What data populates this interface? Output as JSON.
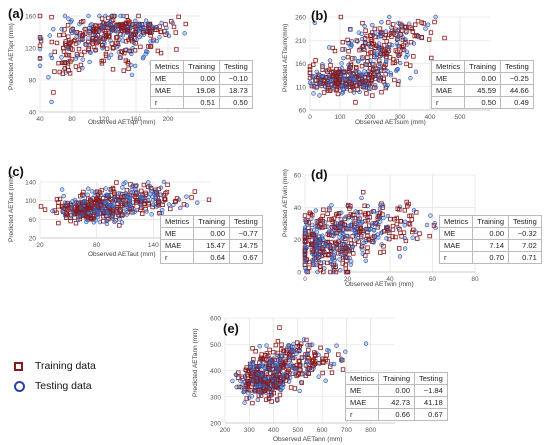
{
  "colors": {
    "training": "#8b1a1a",
    "testing": "#2b4fb0",
    "testing_fill": "#4a86c8",
    "training_fill": "#c96060",
    "grid": "#dddddd",
    "axis": "#cccccc"
  },
  "legend": {
    "training_label": "Training data",
    "testing_label": "Testing data"
  },
  "chart_data": [
    {
      "type": "scatter",
      "panel": "(a)",
      "xlabel": "Observed  AETspr (mm)",
      "ylabel": "Predicted AETspr (mm)",
      "xlim": [
        40,
        240
      ],
      "ylim": [
        40,
        160
      ],
      "xticks": [
        40,
        80,
        120,
        160,
        200
      ],
      "yticks": [
        40,
        80,
        120,
        160
      ],
      "table": {
        "header": [
          "Metrics",
          "Training",
          "Testing"
        ],
        "rows": [
          [
            "ME",
            "0.00",
            "−0.10"
          ],
          [
            "MAE",
            "19.08",
            "18.73"
          ],
          [
            "r",
            "0.51",
            "0.50"
          ]
        ]
      },
      "clusters": [
        {
          "cx": 120,
          "cy": 130,
          "sx": 40,
          "sy": 16,
          "n": 240
        },
        {
          "cx": 150,
          "cy": 145,
          "sx": 30,
          "sy": 5,
          "n": 140
        },
        {
          "cx": 70,
          "cy": 100,
          "sx": 14,
          "sy": 18,
          "n": 40
        }
      ],
      "cap_y": 146
    },
    {
      "type": "scatter",
      "panel": "(b)",
      "xlabel": "Observed  AETsum (mm)",
      "ylabel": "Predicted AETsum(mm)",
      "xlim": [
        0,
        600
      ],
      "ylim": [
        60,
        260
      ],
      "xticks": [
        0,
        100,
        200,
        300,
        400,
        500
      ],
      "yticks": [
        60,
        110,
        160,
        210,
        260
      ],
      "table": {
        "header": [
          "Metrics",
          "Training",
          "Testing"
        ],
        "rows": [
          [
            "ME",
            "0.00",
            "−0.25"
          ],
          [
            "MAE",
            "45.59",
            "44.66"
          ],
          [
            "r",
            "0.50",
            "0.49"
          ]
        ]
      },
      "clusters": [
        {
          "cx": 110,
          "cy": 125,
          "sx": 60,
          "sy": 14,
          "n": 260
        },
        {
          "cx": 220,
          "cy": 180,
          "sx": 70,
          "sy": 35,
          "n": 200
        },
        {
          "cx": 300,
          "cy": 225,
          "sx": 55,
          "sy": 15,
          "n": 60
        }
      ],
      "cap_y": 105
    },
    {
      "type": "scatter",
      "panel": "(c)",
      "xlabel": "Observed  AETaut (mm)",
      "ylabel": "Predicted AETaut (mm)",
      "xlim": [
        20,
        200
      ],
      "ylim": [
        20,
        140
      ],
      "xticks": [
        20,
        80,
        140
      ],
      "yticks": [
        20,
        60,
        100,
        140
      ],
      "table": {
        "header": [
          "Metrics",
          "Training",
          "Testing"
        ],
        "rows": [
          [
            "ME",
            "0.00",
            "−0.77"
          ],
          [
            "MAE",
            "15.47",
            "14.75"
          ],
          [
            "r",
            "0.64",
            "0.67"
          ]
        ]
      },
      "clusters": [
        {
          "cx": 75,
          "cy": 80,
          "sx": 20,
          "sy": 14,
          "n": 300
        },
        {
          "cx": 120,
          "cy": 105,
          "sx": 28,
          "sy": 16,
          "n": 200
        }
      ],
      "cap_y": 55
    },
    {
      "type": "scatter",
      "panel": "(d)",
      "xlabel": "Observed  AETwin (mm)",
      "ylabel": "Predicted AETwin (mm)",
      "xlim": [
        0,
        80
      ],
      "ylim": [
        0,
        60
      ],
      "xticks": [
        0,
        20,
        40,
        60,
        80
      ],
      "yticks": [
        0,
        20,
        40,
        60
      ],
      "table": {
        "header": [
          "Metrics",
          "Training",
          "Testing"
        ],
        "rows": [
          [
            "ME",
            "0.00",
            "−0.32"
          ],
          [
            "MAE",
            "7.14",
            "7.02"
          ],
          [
            "r",
            "0.70",
            "0.71"
          ]
        ]
      },
      "clusters": [
        {
          "cx": 10,
          "cy": 15,
          "sx": 8,
          "sy": 9,
          "n": 280
        },
        {
          "cx": 28,
          "cy": 28,
          "sx": 14,
          "sy": 8,
          "n": 240
        }
      ],
      "cap_y": 2
    },
    {
      "type": "scatter",
      "panel": "(e)",
      "xlabel": "Observed  AETann (mm)",
      "ylabel": "Predicted AETann (mm)",
      "xlim": [
        200,
        900
      ],
      "ylim": [
        200,
        600
      ],
      "xticks": [
        200,
        300,
        400,
        500,
        600,
        700,
        800
      ],
      "yticks": [
        200,
        300,
        400,
        500,
        600
      ],
      "table": {
        "header": [
          "Metrics",
          "Training",
          "Testing"
        ],
        "rows": [
          [
            "ME",
            "0.00",
            "−1.84"
          ],
          [
            "MAE",
            "42.73",
            "41.18"
          ],
          [
            "r",
            "0.66",
            "0.67"
          ]
        ]
      },
      "clusters": [
        {
          "cx": 360,
          "cy": 360,
          "sx": 50,
          "sy": 35,
          "n": 300
        },
        {
          "cx": 440,
          "cy": 430,
          "sx": 60,
          "sy": 45,
          "n": 160
        },
        {
          "cx": 560,
          "cy": 440,
          "sx": 60,
          "sy": 35,
          "n": 60
        }
      ],
      "cap_y": 320
    }
  ]
}
